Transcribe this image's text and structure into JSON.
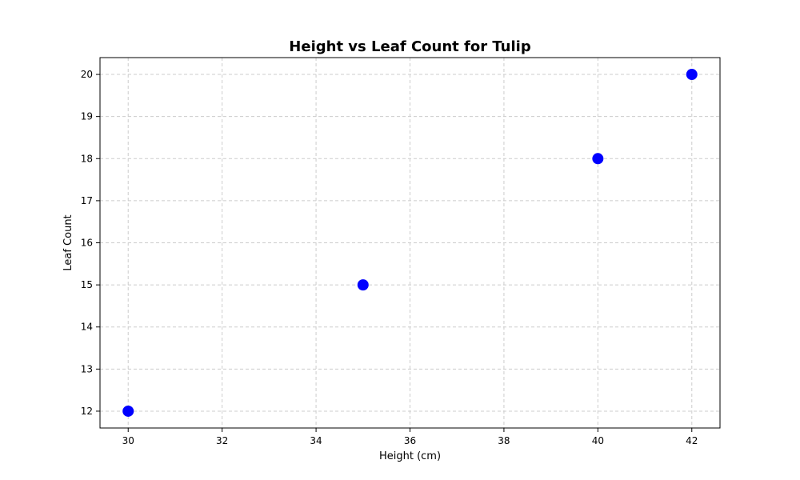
{
  "chart_data": {
    "type": "scatter",
    "title": "Height vs Leaf Count for Tulip",
    "xlabel": "Height (cm)",
    "ylabel": "Leaf Count",
    "xlim": [
      29.4,
      42.6
    ],
    "ylim": [
      11.6,
      20.4
    ],
    "x_ticks": [
      30,
      32,
      34,
      36,
      38,
      40,
      42
    ],
    "y_ticks": [
      12,
      13,
      14,
      15,
      16,
      17,
      18,
      19,
      20
    ],
    "grid": true,
    "marker_color": "#0000ff",
    "points": [
      {
        "x": 30,
        "y": 12
      },
      {
        "x": 35,
        "y": 15
      },
      {
        "x": 40,
        "y": 18
      },
      {
        "x": 42,
        "y": 20
      }
    ]
  }
}
